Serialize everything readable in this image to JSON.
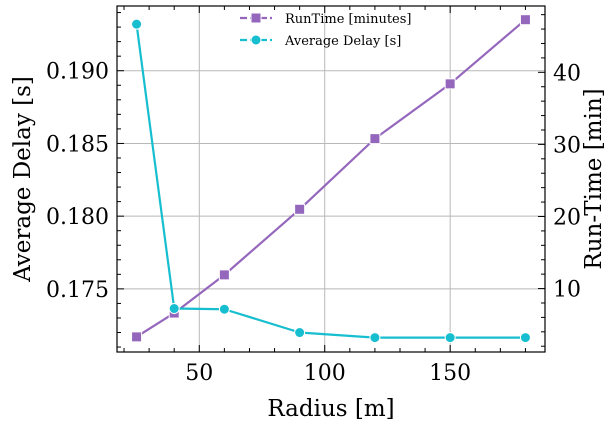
{
  "chart_data": {
    "type": "line",
    "title": "",
    "xlabel": "Radius [m]",
    "ylabel_left": "Average Delay [s]",
    "ylabel_right": "Run-Time [min]",
    "xlim": [
      17.2,
      187.8
    ],
    "ylim_left": [
      0.17066,
      0.19445
    ],
    "ylim_right": [
      1.2,
      49.2
    ],
    "x_ticks": [
      50,
      100,
      150
    ],
    "x_tick_labels": [
      "50",
      "100",
      "150"
    ],
    "y_left_ticks": [
      0.175,
      0.18,
      0.185,
      0.19
    ],
    "y_left_tick_labels": [
      "0.175",
      "0.180",
      "0.185",
      "0.190"
    ],
    "y_right_ticks": [
      10,
      20,
      30,
      40
    ],
    "y_right_tick_labels": [
      "10",
      "20",
      "30",
      "40"
    ],
    "grid": true,
    "legend_position": "top-center",
    "x": [
      25,
      40,
      60,
      90,
      120,
      150,
      180
    ],
    "series": [
      {
        "name": "RunTime [minutes]",
        "axis": "right",
        "color": "#9467bd",
        "marker": "square",
        "values": [
          3.3,
          6.6,
          11.9,
          21.0,
          30.8,
          38.4,
          47.3
        ]
      },
      {
        "name": "Average Delay [s]",
        "axis": "left",
        "color": "#17becf",
        "marker": "circle",
        "values": [
          0.1932,
          0.17365,
          0.1736,
          0.172,
          0.17165,
          0.17165,
          0.17165
        ]
      }
    ]
  }
}
